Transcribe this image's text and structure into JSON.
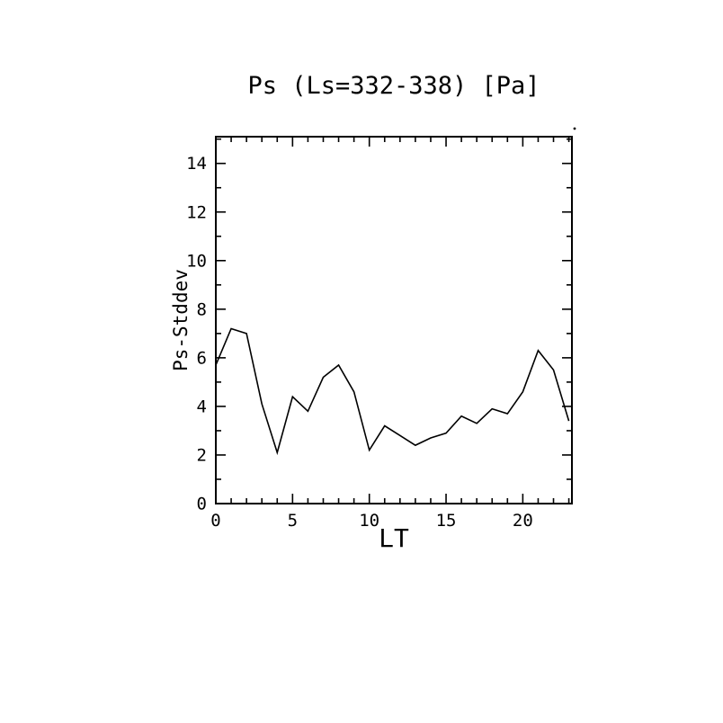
{
  "chart_data": {
    "type": "line",
    "title": "Ps (Ls=332-338) [Pa]",
    "xlabel": "LT",
    "ylabel": "Ps-Stddev",
    "x": [
      0,
      1,
      2,
      3,
      4,
      5,
      6,
      7,
      8,
      9,
      10,
      11,
      12,
      13,
      14,
      15,
      16,
      17,
      18,
      19,
      20,
      21,
      22,
      23
    ],
    "values": [
      5.7,
      7.2,
      7.0,
      4.1,
      2.1,
      4.4,
      3.8,
      5.2,
      5.7,
      4.6,
      2.2,
      3.2,
      2.8,
      2.4,
      2.7,
      2.9,
      3.6,
      3.3,
      3.9,
      3.7,
      4.6,
      6.3,
      5.5,
      3.4
    ],
    "xlim": [
      0,
      23.2
    ],
    "ylim": [
      0,
      15.1
    ],
    "x_major_ticks": [
      0,
      5,
      10,
      15,
      20
    ],
    "x_minor_step": 1,
    "y_major_ticks": [
      0,
      2,
      4,
      6,
      8,
      10,
      12,
      14
    ],
    "y_minor_step": 1,
    "grid": false,
    "legend": null,
    "line_color": "#000000",
    "frame_color": "#000000",
    "background": "#ffffff"
  }
}
